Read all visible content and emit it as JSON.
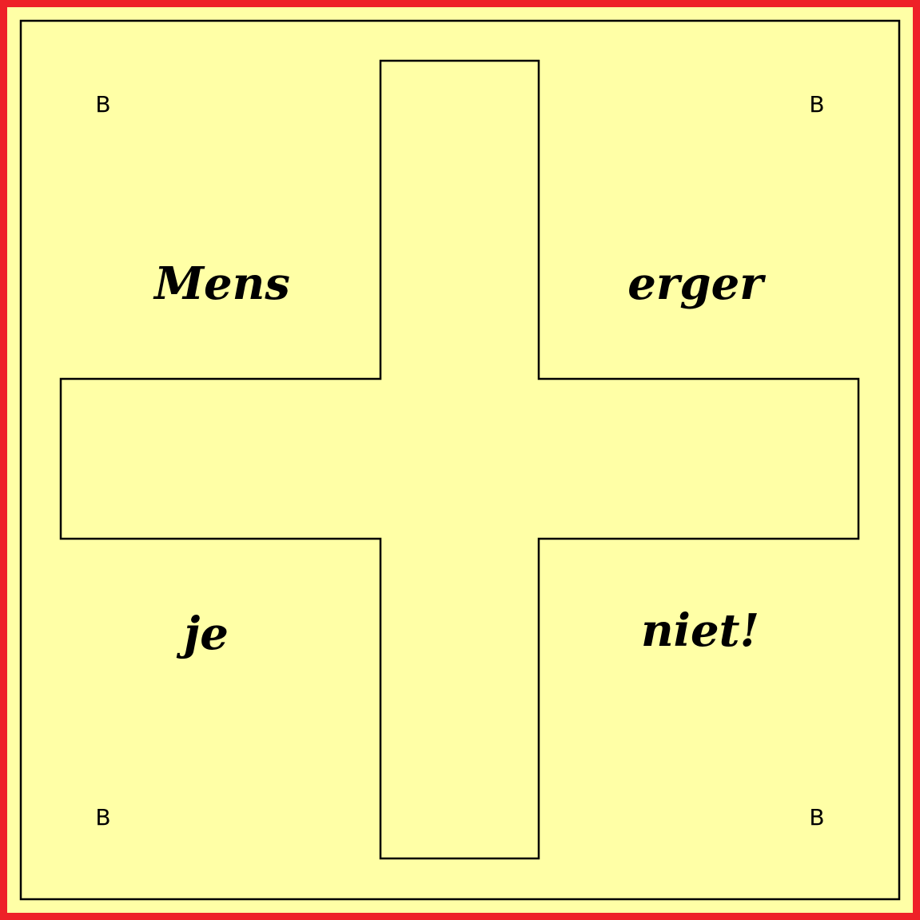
{
  "board": {
    "colors": {
      "border": "#ee2128",
      "background": "#ffffa6",
      "lines": "#000000"
    },
    "corner_labels": [
      "B",
      "B",
      "B",
      "B"
    ],
    "words": [
      "Mens",
      "erger",
      "je",
      "niet!"
    ]
  }
}
